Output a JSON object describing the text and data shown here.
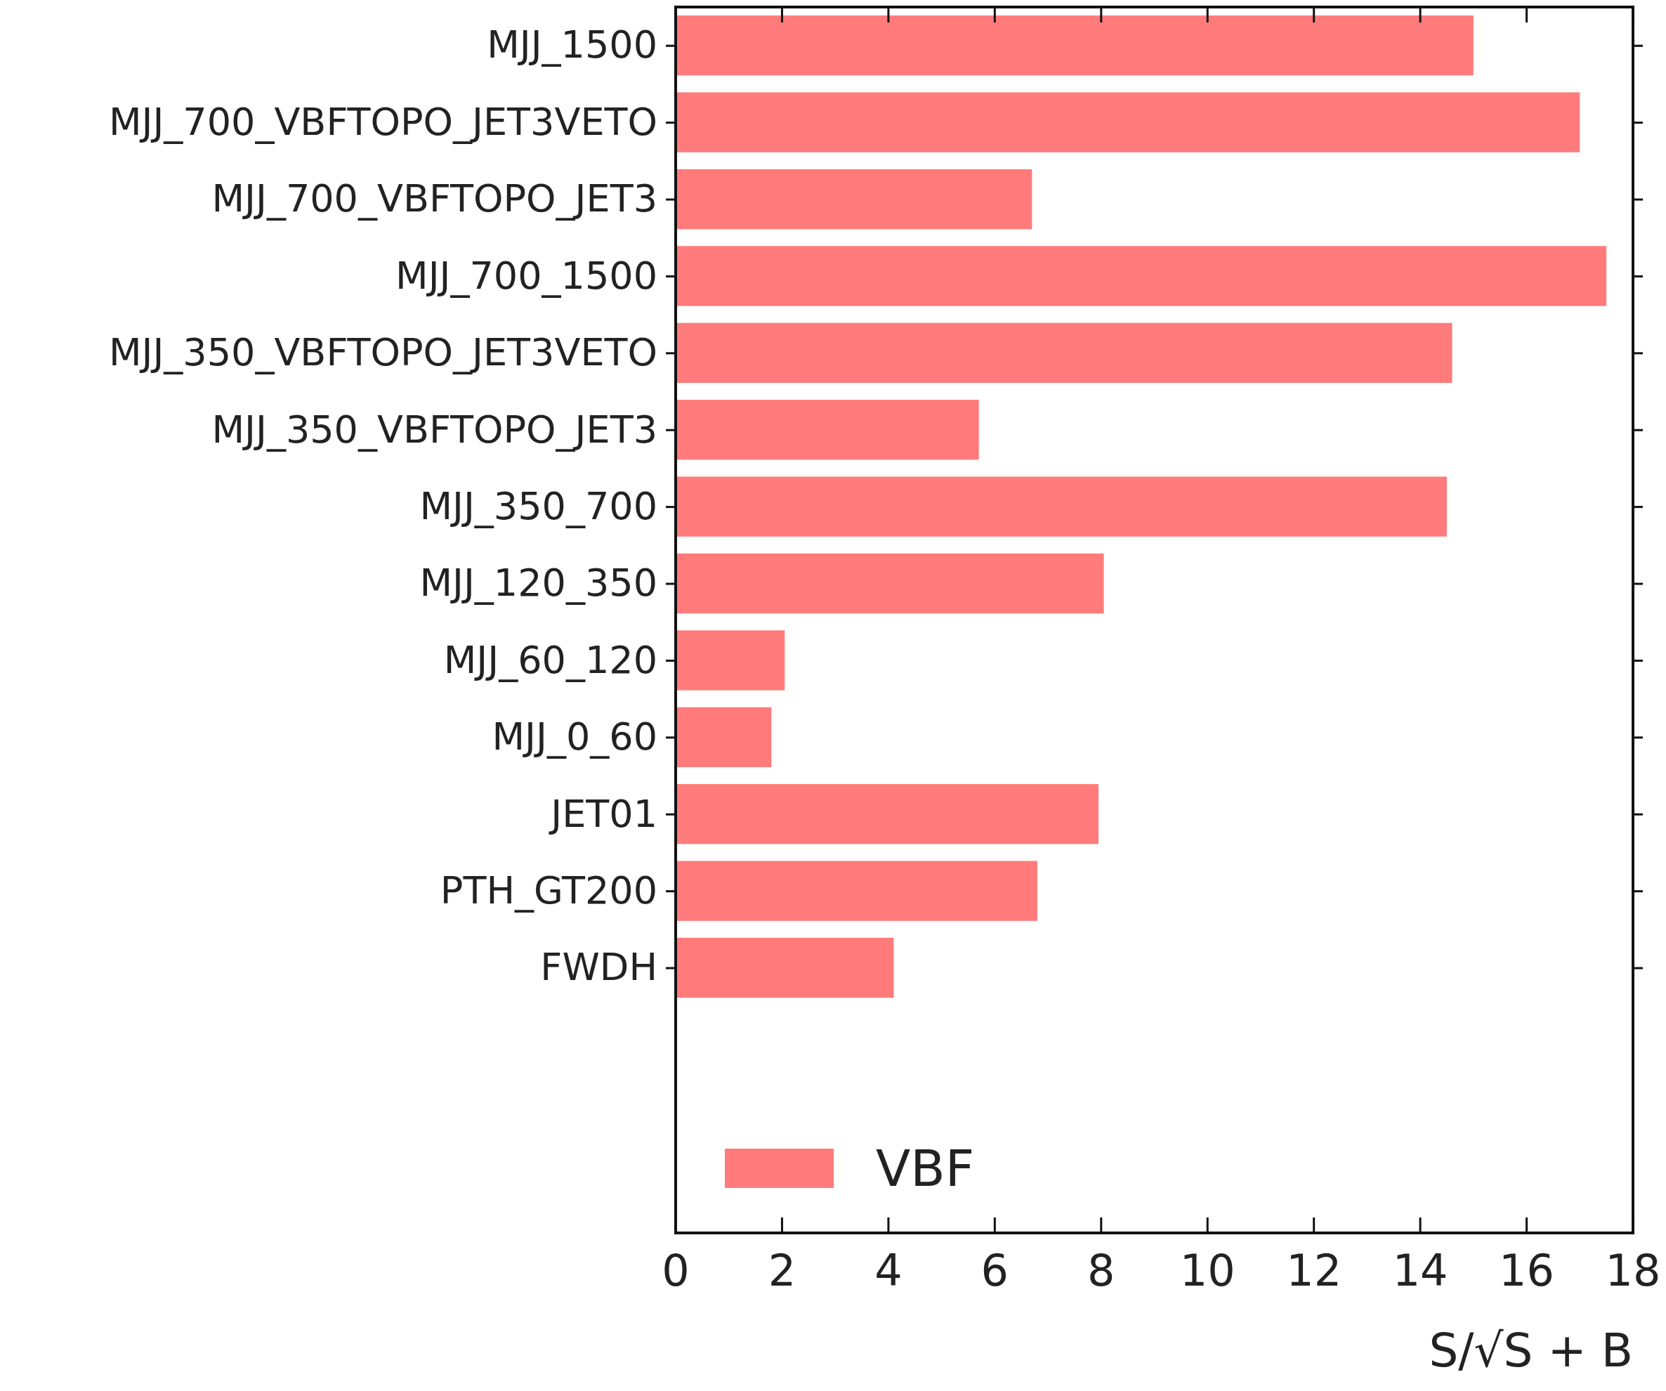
{
  "chart_data": {
    "type": "bar",
    "orientation": "horizontal",
    "xlabel": "S/√S + B",
    "categories": [
      "MJJ_1500",
      "MJJ_700_VBFTOPO_JET3VETO",
      "MJJ_700_VBFTOPO_JET3",
      "MJJ_700_1500",
      "MJJ_350_VBFTOPO_JET3VETO",
      "MJJ_350_VBFTOPO_JET3",
      "MJJ_350_700",
      "MJJ_120_350",
      "MJJ_60_120",
      "MJJ_0_60",
      "JET01",
      "PTH_GT200",
      "FWDH"
    ],
    "series": [
      {
        "name": "VBF",
        "color": "#ff7b7b",
        "values": [
          15.0,
          17.0,
          6.7,
          17.5,
          14.6,
          5.7,
          14.5,
          8.05,
          2.05,
          1.8,
          7.95,
          6.8,
          4.1
        ]
      }
    ],
    "xlim": [
      0,
      18
    ],
    "xticks": [
      0,
      2,
      4,
      6,
      8,
      10,
      12,
      14,
      16,
      18
    ],
    "legend": "bottom left"
  }
}
